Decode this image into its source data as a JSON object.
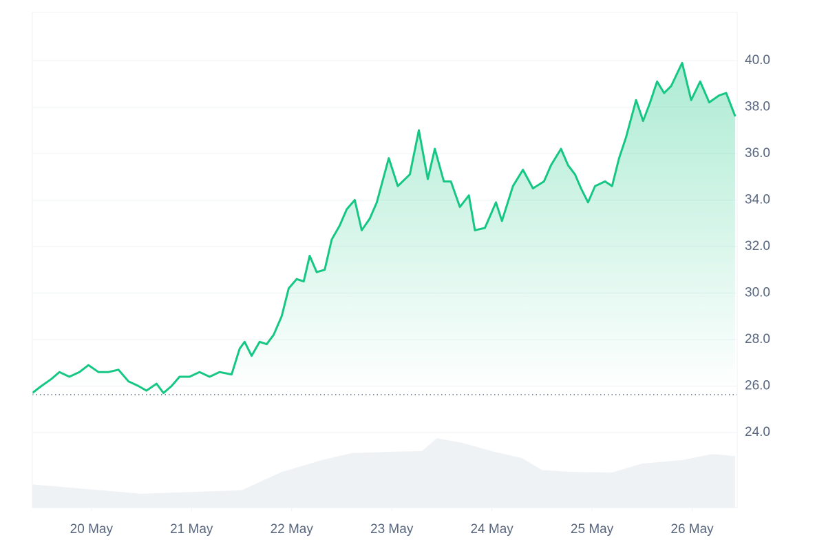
{
  "chart_data": {
    "type": "line",
    "x": [
      19.41,
      19.5,
      19.6,
      19.68,
      19.78,
      19.88,
      19.97,
      20.07,
      20.17,
      20.27,
      20.37,
      20.47,
      20.55,
      20.65,
      20.72,
      20.8,
      20.88,
      20.98,
      21.08,
      21.18,
      21.28,
      21.4,
      21.48,
      21.53,
      21.6,
      21.68,
      21.75,
      21.82,
      21.9,
      21.97,
      22.05,
      22.12,
      22.18,
      22.25,
      22.33,
      22.4,
      22.48,
      22.55,
      22.63,
      22.7,
      22.78,
      22.85,
      22.97,
      23.06,
      23.18,
      23.27,
      23.36,
      23.43,
      23.52,
      23.59,
      23.68,
      23.77,
      23.83,
      23.93,
      24.04,
      24.1,
      24.21,
      24.31,
      24.41,
      24.52,
      24.59,
      24.69,
      24.76,
      24.83,
      24.89,
      24.96,
      25.03,
      25.13,
      25.2,
      25.27,
      25.34,
      25.44,
      25.51,
      25.58,
      25.65,
      25.72,
      25.79,
      25.9,
      25.99,
      26.08,
      26.17,
      26.27,
      26.34,
      26.43
    ],
    "series": [
      {
        "color": "#16c784",
        "values": [
          25.7,
          26.0,
          26.3,
          26.6,
          26.4,
          26.6,
          26.9,
          26.6,
          26.6,
          26.7,
          26.2,
          26.0,
          25.8,
          26.1,
          25.7,
          26.0,
          26.4,
          26.4,
          26.6,
          26.4,
          26.6,
          26.5,
          27.6,
          27.9,
          27.3,
          27.9,
          27.8,
          28.2,
          29.0,
          30.2,
          30.6,
          30.5,
          31.6,
          30.9,
          31.0,
          32.3,
          32.9,
          33.6,
          34.0,
          32.7,
          33.2,
          33.9,
          35.8,
          34.6,
          35.1,
          37.0,
          34.9,
          36.2,
          34.8,
          34.8,
          33.7,
          34.2,
          32.7,
          32.8,
          33.9,
          33.1,
          34.6,
          35.3,
          34.5,
          34.8,
          35.5,
          36.2,
          35.5,
          35.1,
          34.5,
          33.9,
          34.6,
          34.8,
          34.6,
          35.8,
          36.7,
          38.3,
          37.4,
          38.2,
          39.1,
          38.6,
          38.9,
          39.9,
          38.3,
          39.1,
          38.2,
          38.5,
          38.6,
          37.6
        ]
      },
      {
        "color": "#eff2f5",
        "axis": "y2",
        "x": [
          19.41,
          20.5,
          21.5,
          21.9,
          22.3,
          22.6,
          23.0,
          23.3,
          23.45,
          23.7,
          24.0,
          24.3,
          24.5,
          24.8,
          25.2,
          25.5,
          25.9,
          26.2,
          26.43
        ],
        "values": [
          4.7,
          2.8,
          3.5,
          7.2,
          9.6,
          11.0,
          11.3,
          11.4,
          14.0,
          13.1,
          11.4,
          10.0,
          7.6,
          7.2,
          7.1,
          8.9,
          9.6,
          10.8,
          10.4
        ]
      }
    ],
    "baseline": 25.63,
    "xlim": [
      19.41,
      26.45
    ],
    "xticks": [
      {
        "value": 20,
        "label": "20 May"
      },
      {
        "value": 21,
        "label": "21 May"
      },
      {
        "value": 22,
        "label": "22 May"
      },
      {
        "value": 23,
        "label": "23 May"
      },
      {
        "value": 24,
        "label": "24 May"
      },
      {
        "value": 25,
        "label": "25 May"
      },
      {
        "value": 26,
        "label": "26 May"
      }
    ],
    "ylim": [
      20.77,
      42.07
    ],
    "yticks": [
      {
        "value": 24,
        "label": "24.0"
      },
      {
        "value": 26,
        "label": "26.0"
      },
      {
        "value": 28,
        "label": "28.0"
      },
      {
        "value": 30,
        "label": "30.0"
      },
      {
        "value": 32,
        "label": "32.0"
      },
      {
        "value": 34,
        "label": "34.0"
      },
      {
        "value": 36,
        "label": "36.0"
      },
      {
        "value": 38,
        "label": "38.0"
      },
      {
        "value": 40,
        "label": "40.0"
      }
    ],
    "y2lim": [
      0,
      100
    ],
    "grid": true
  }
}
